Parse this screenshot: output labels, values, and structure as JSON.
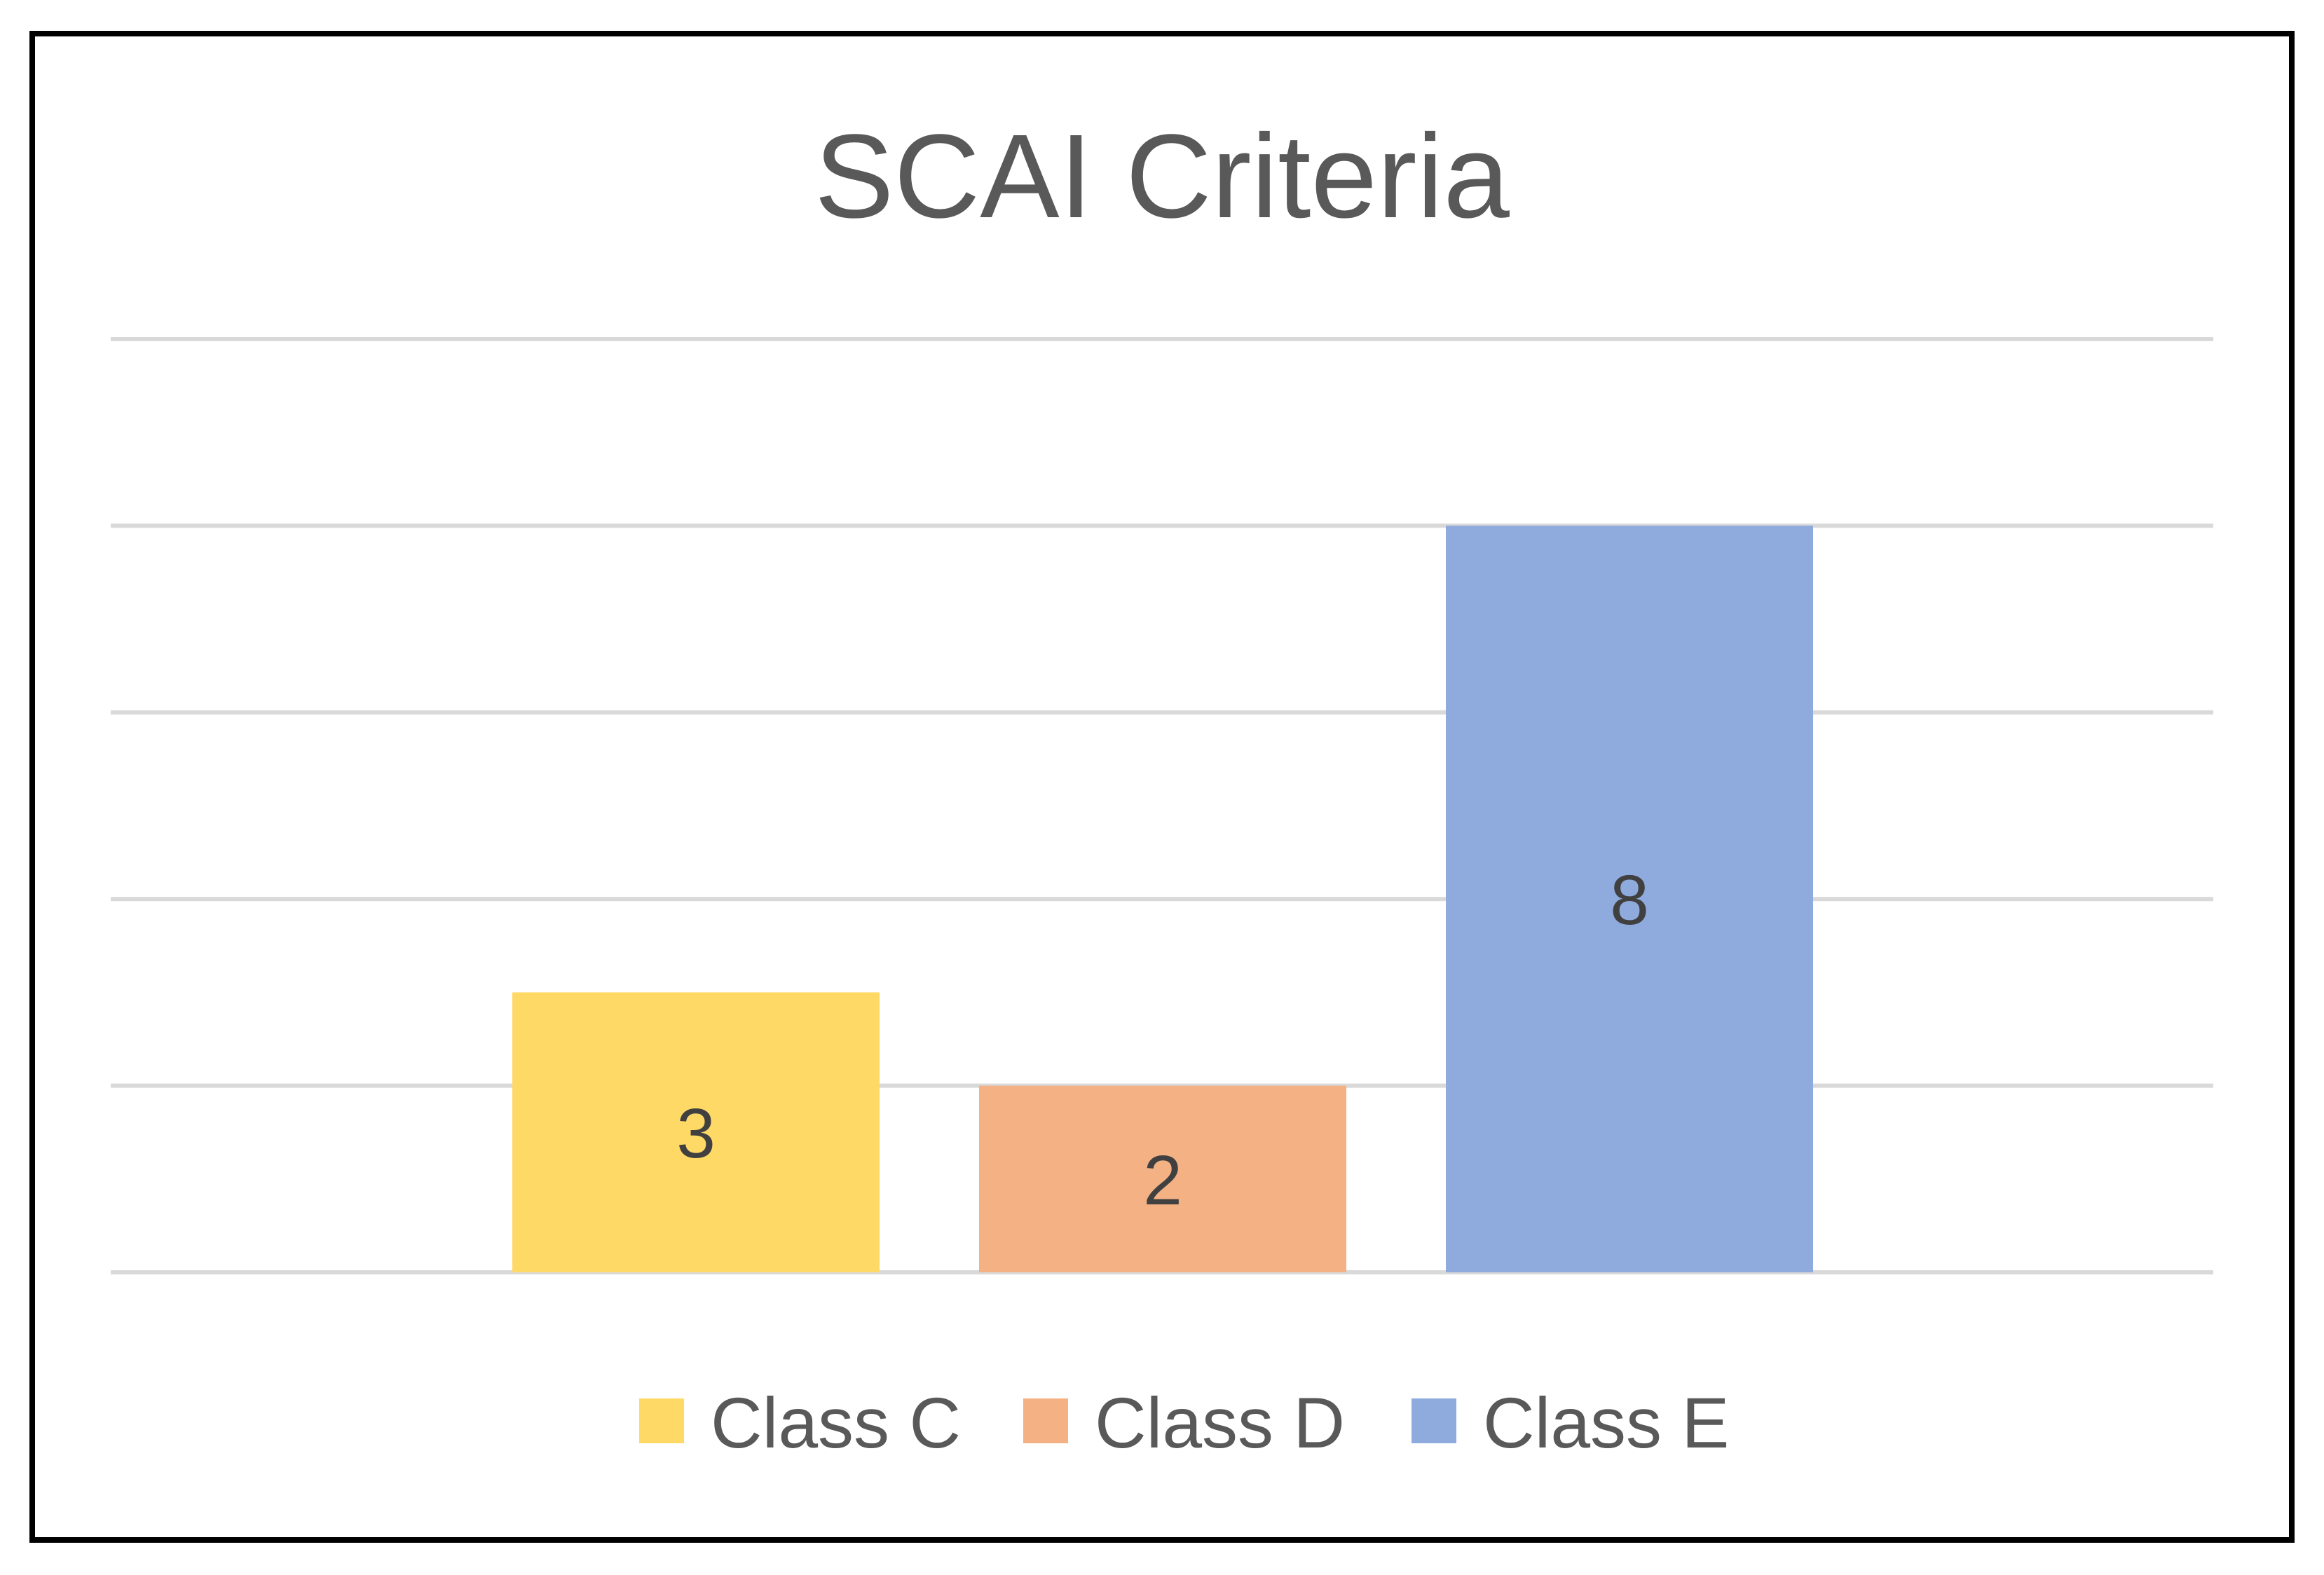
{
  "chart_data": {
    "type": "bar",
    "title": "SCAI Criteria",
    "xlabel": "",
    "ylabel": "",
    "ylim": [
      0,
      10
    ],
    "grid": true,
    "legend_position": "bottom",
    "categories": [
      ""
    ],
    "series": [
      {
        "name": "Class C",
        "values": [
          3
        ],
        "color": "#FFD966"
      },
      {
        "name": "Class D",
        "values": [
          2
        ],
        "color": "#F4B183"
      },
      {
        "name": "Class E",
        "values": [
          8
        ],
        "color": "#8FAADC"
      }
    ],
    "data_labels": true
  },
  "colors": {
    "frame": "#000000",
    "gridline": "#d9d9d9",
    "title": "#595959",
    "data_label": "#404040",
    "legend_text": "#595959"
  }
}
